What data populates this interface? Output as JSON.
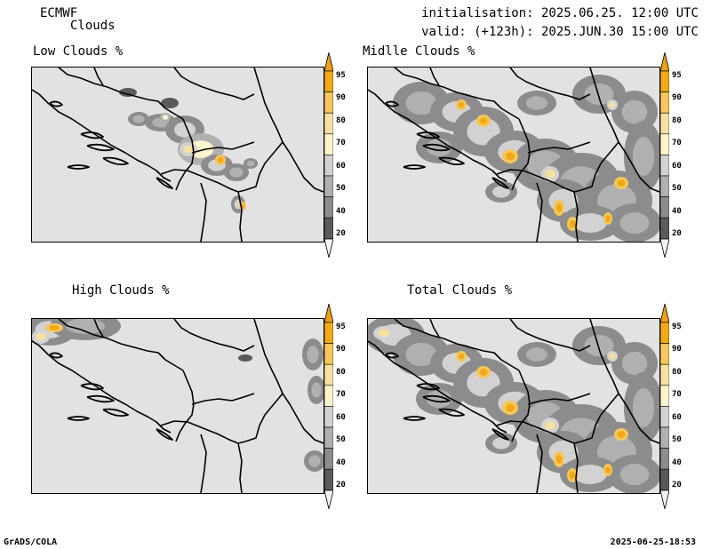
{
  "header": {
    "model": "ECMWF",
    "product": "Clouds",
    "initialisation": "initialisation: 2025.06.25. 12:00 UTC",
    "valid": "valid: (+123h): 2025.JUN.30 15:00 UTC"
  },
  "panels": [
    {
      "title": "Low Clouds %"
    },
    {
      "title": "Midlle Clouds %"
    },
    {
      "title": "High Clouds %"
    },
    {
      "title": "Total Clouds %"
    }
  ],
  "legend": {
    "levels": [
      "95",
      "90",
      "80",
      "70",
      "60",
      "50",
      "40",
      "20"
    ],
    "colors": [
      "#f2a818",
      "#f5c75a",
      "#f8e0a0",
      "#fbf4cc",
      "#d2d2d2",
      "#b0b0b0",
      "#8c8c8c",
      "#5a5a5a"
    ],
    "triangle_top": "#f0a010",
    "triangle_bottom": "#f4f4f4"
  },
  "map": {
    "background_color": "#e2e2e2",
    "border_color": "#000000"
  },
  "footer": {
    "left": "GrADS/COLA",
    "right": "2025-06-25-18:53"
  }
}
